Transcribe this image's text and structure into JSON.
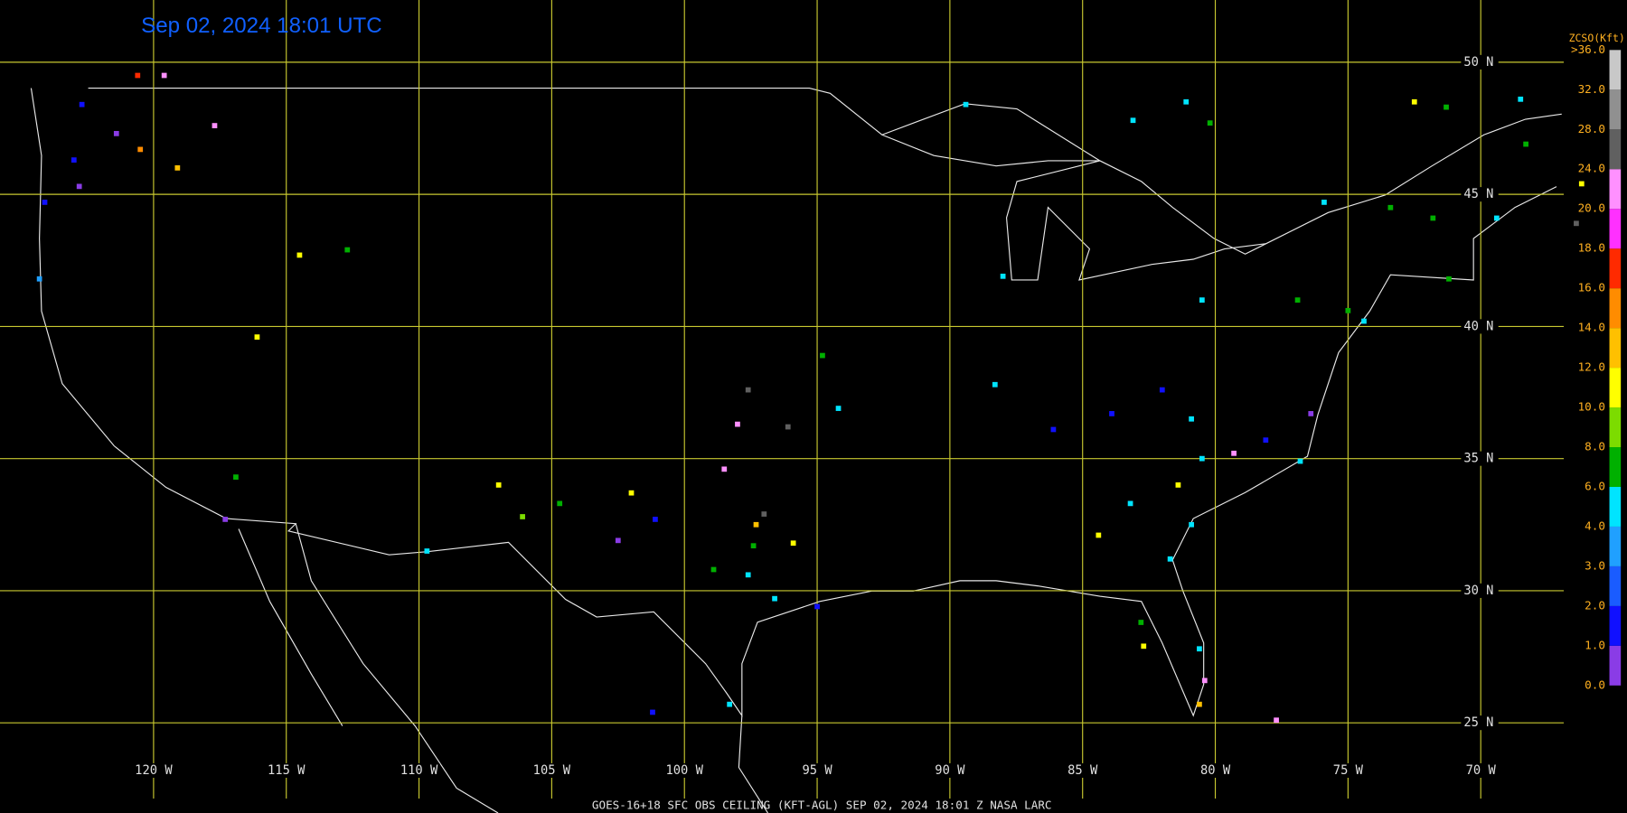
{
  "title": "Sep 02, 2024 18:01 UTC",
  "footer": "GOES-16+18  SFC OBS CEILING (KFT-AGL)  SEP 02, 2024 18:01 Z  NASA LARC",
  "grid": {
    "lat": [
      {
        "value": 50,
        "label": "50 N"
      },
      {
        "value": 45,
        "label": "45 N"
      },
      {
        "value": 40,
        "label": "40 N"
      },
      {
        "value": 35,
        "label": "35 N"
      },
      {
        "value": 30,
        "label": "30 N"
      },
      {
        "value": 25,
        "label": "25 N"
      }
    ],
    "lon": [
      {
        "value": -120,
        "label": "120 W"
      },
      {
        "value": -115,
        "label": "115 W"
      },
      {
        "value": -110,
        "label": "110 W"
      },
      {
        "value": -105,
        "label": "105 W"
      },
      {
        "value": -100,
        "label": "100 W"
      },
      {
        "value": -95,
        "label": "95 W"
      },
      {
        "value": -90,
        "label": "90 W"
      },
      {
        "value": -85,
        "label": "85 W"
      },
      {
        "value": -80,
        "label": "80 W"
      },
      {
        "value": -75,
        "label": "75 W"
      },
      {
        "value": -70,
        "label": "70 W"
      }
    ]
  },
  "legend": {
    "title": "ZCSO(Kft)",
    "levels": [
      {
        "value": 0,
        "label": "0.0"
      },
      {
        "value": 1,
        "label": "1.0"
      },
      {
        "value": 2,
        "label": "2.0"
      },
      {
        "value": 3,
        "label": "3.0"
      },
      {
        "value": 4,
        "label": "4.0"
      },
      {
        "value": 6,
        "label": "6.0"
      },
      {
        "value": 8,
        "label": "8.0"
      },
      {
        "value": 10,
        "label": "10.0"
      },
      {
        "value": 12,
        "label": "12.0"
      },
      {
        "value": 14,
        "label": "14.0"
      },
      {
        "value": 16,
        "label": "16.0"
      },
      {
        "value": 18,
        "label": "18.0"
      },
      {
        "value": 20,
        "label": "20.0"
      },
      {
        "value": 24,
        "label": "24.0"
      },
      {
        "value": 28,
        "label": "28.0"
      },
      {
        "value": 32,
        "label": "32.0"
      },
      {
        "value": 36,
        "label": ">36.0"
      }
    ],
    "colors": [
      "#8a3ce6",
      "#1010ff",
      "#1a5cff",
      "#20a0ff",
      "#00e4ff",
      "#00b000",
      "#7cdc00",
      "#ffff00",
      "#ffc000",
      "#ff8c00",
      "#ff2a00",
      "#ff30ff",
      "#ff90ff",
      "#606060",
      "#909090",
      "#c8c8c8"
    ]
  },
  "stations": [
    {
      "lon": -120.6,
      "lat": 49.5,
      "value": 17
    },
    {
      "lon": -119.6,
      "lat": 49.5,
      "value": 22
    },
    {
      "lon": -117.7,
      "lat": 47.6,
      "value": 22
    },
    {
      "lon": -120.5,
      "lat": 46.7,
      "value": 15
    },
    {
      "lon": -119.1,
      "lat": 46.0,
      "value": 13
    },
    {
      "lon": -121.4,
      "lat": 47.3,
      "value": 0.5
    },
    {
      "lon": -122.7,
      "lat": 48.4,
      "value": 1.5
    },
    {
      "lon": -123.0,
      "lat": 46.3,
      "value": 1.5
    },
    {
      "lon": -122.8,
      "lat": 45.3,
      "value": 0.5
    },
    {
      "lon": -124.1,
      "lat": 44.7,
      "value": 1.5
    },
    {
      "lon": -124.3,
      "lat": 41.8,
      "value": 3.5
    },
    {
      "lon": -114.5,
      "lat": 42.7,
      "value": 11
    },
    {
      "lon": -112.7,
      "lat": 42.9,
      "value": 7
    },
    {
      "lon": -116.1,
      "lat": 39.6,
      "value": 11
    },
    {
      "lon": -116.9,
      "lat": 34.3,
      "value": 7
    },
    {
      "lon": -117.3,
      "lat": 32.7,
      "value": 0.5
    },
    {
      "lon": -109.7,
      "lat": 31.5,
      "value": 5
    },
    {
      "lon": -107.0,
      "lat": 34.0,
      "value": 11
    },
    {
      "lon": -106.1,
      "lat": 32.8,
      "value": 9
    },
    {
      "lon": -104.7,
      "lat": 33.3,
      "value": 7
    },
    {
      "lon": -102.0,
      "lat": 33.7,
      "value": 11
    },
    {
      "lon": -102.5,
      "lat": 31.9,
      "value": 0.5
    },
    {
      "lon": -101.1,
      "lat": 32.7,
      "value": 1.5
    },
    {
      "lon": -97.6,
      "lat": 37.6,
      "value": 26
    },
    {
      "lon": -98.0,
      "lat": 36.3,
      "value": 22
    },
    {
      "lon": -96.1,
      "lat": 36.2,
      "value": 26
    },
    {
      "lon": -98.5,
      "lat": 34.6,
      "value": 22
    },
    {
      "lon": -97.0,
      "lat": 32.9,
      "value": 26
    },
    {
      "lon": -97.3,
      "lat": 32.5,
      "value": 13
    },
    {
      "lon": -97.4,
      "lat": 31.7,
      "value": 7
    },
    {
      "lon": -97.6,
      "lat": 30.6,
      "value": 5
    },
    {
      "lon": -95.9,
      "lat": 31.8,
      "value": 11
    },
    {
      "lon": -98.9,
      "lat": 30.8,
      "value": 7
    },
    {
      "lon": -96.6,
      "lat": 29.7,
      "value": 5
    },
    {
      "lon": -95.0,
      "lat": 29.4,
      "value": 1.5
    },
    {
      "lon": -98.3,
      "lat": 25.7,
      "value": 5
    },
    {
      "lon": -101.2,
      "lat": 25.4,
      "value": 1.5
    },
    {
      "lon": -94.2,
      "lat": 36.9,
      "value": 5
    },
    {
      "lon": -94.8,
      "lat": 38.9,
      "value": 7
    },
    {
      "lon": -88.0,
      "lat": 41.9,
      "value": 5
    },
    {
      "lon": -88.3,
      "lat": 37.8,
      "value": 5
    },
    {
      "lon": -86.1,
      "lat": 36.1,
      "value": 1.5
    },
    {
      "lon": -83.1,
      "lat": 47.8,
      "value": 5
    },
    {
      "lon": -81.1,
      "lat": 48.5,
      "value": 5
    },
    {
      "lon": -80.2,
      "lat": 47.7,
      "value": 7
    },
    {
      "lon": -84.4,
      "lat": 32.1,
      "value": 11
    },
    {
      "lon": -81.4,
      "lat": 34.0,
      "value": 11
    },
    {
      "lon": -80.5,
      "lat": 35.0,
      "value": 5
    },
    {
      "lon": -79.3,
      "lat": 35.2,
      "value": 22
    },
    {
      "lon": -78.1,
      "lat": 35.7,
      "value": 1.5
    },
    {
      "lon": -76.8,
      "lat": 34.9,
      "value": 5
    },
    {
      "lon": -76.4,
      "lat": 36.7,
      "value": 0.5
    },
    {
      "lon": -80.9,
      "lat": 32.5,
      "value": 5
    },
    {
      "lon": -81.7,
      "lat": 31.2,
      "value": 5
    },
    {
      "lon": -82.8,
      "lat": 28.8,
      "value": 7
    },
    {
      "lon": -82.7,
      "lat": 27.9,
      "value": 11
    },
    {
      "lon": -80.6,
      "lat": 27.8,
      "value": 5
    },
    {
      "lon": -80.4,
      "lat": 26.6,
      "value": 22
    },
    {
      "lon": -80.6,
      "lat": 25.7,
      "value": 13
    },
    {
      "lon": -77.7,
      "lat": 25.1,
      "value": 22
    },
    {
      "lon": -80.5,
      "lat": 41.0,
      "value": 5
    },
    {
      "lon": -76.9,
      "lat": 41.0,
      "value": 7
    },
    {
      "lon": -75.9,
      "lat": 44.7,
      "value": 5
    },
    {
      "lon": -73.4,
      "lat": 44.5,
      "value": 7
    },
    {
      "lon": -71.8,
      "lat": 44.1,
      "value": 7
    },
    {
      "lon": -71.2,
      "lat": 41.8,
      "value": 7
    },
    {
      "lon": -75.0,
      "lat": 40.6,
      "value": 7
    },
    {
      "lon": -74.4,
      "lat": 40.2,
      "value": 5
    },
    {
      "lon": -72.5,
      "lat": 48.5,
      "value": 11
    },
    {
      "lon": -71.3,
      "lat": 48.3,
      "value": 7
    },
    {
      "lon": -68.5,
      "lat": 48.6,
      "value": 5
    },
    {
      "lon": -68.3,
      "lat": 46.9,
      "value": 7
    },
    {
      "lon": -66.2,
      "lat": 45.4,
      "value": 11
    },
    {
      "lon": -66.4,
      "lat": 43.9,
      "value": 26
    },
    {
      "lon": -69.4,
      "lat": 44.1,
      "value": 5
    },
    {
      "lon": -89.4,
      "lat": 48.4,
      "value": 5
    },
    {
      "lon": -82.0,
      "lat": 37.6,
      "value": 1.5
    },
    {
      "lon": -83.9,
      "lat": 36.7,
      "value": 1.5
    },
    {
      "lon": -80.9,
      "lat": 36.5,
      "value": 5
    },
    {
      "lon": -83.2,
      "lat": 33.3,
      "value": 5
    }
  ]
}
